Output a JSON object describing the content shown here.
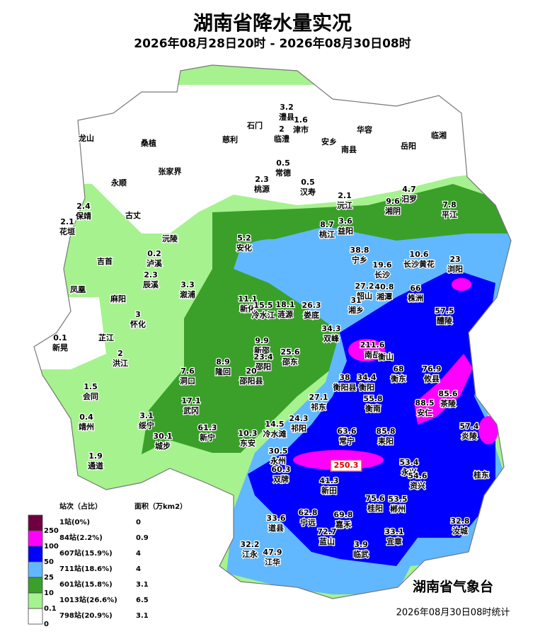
{
  "title": "湖南省降水量实况",
  "subtitle": "2026年08月28日20时 - 2026年08月30日08时",
  "organization": "湖南省气象台",
  "footer": "2026年08月30日08时统计",
  "legend": {
    "header_count": "站次（占比）",
    "header_area": "面积（万km2）",
    "levels": [
      {
        "threshold": 250,
        "stations": "1站(0%)",
        "area": 0,
        "color": "#6e0040"
      },
      {
        "threshold": 100,
        "stations": "84站(2.2%)",
        "area": 0.9,
        "color": "#ff00ff"
      },
      {
        "threshold": 50,
        "stations": "607站(15.9%)",
        "area": 4,
        "color": "#0000ff"
      },
      {
        "threshold": 25,
        "stations": "711站(18.6%)",
        "area": 4,
        "color": "#61b8ff"
      },
      {
        "threshold": 10,
        "stations": "601站(15.8%)",
        "area": 3.1,
        "color": "#3aa02a"
      },
      {
        "threshold": 0.1,
        "stations": "1013站(26.6%)",
        "area": 6.5,
        "color": "#a6f28f"
      },
      {
        "threshold": 0,
        "stations": "798站(20.9%)",
        "area": 3.1,
        "color": "#ffffff"
      }
    ]
  },
  "stations": [
    {
      "name": "澧县",
      "value": 3.2
    },
    {
      "name": "津市",
      "value": 1.6
    },
    {
      "name": "临澧",
      "value": 2
    },
    {
      "name": "石门",
      "value": null
    },
    {
      "name": "慈利",
      "value": null
    },
    {
      "name": "桑植",
      "value": null
    },
    {
      "name": "龙山",
      "value": null
    },
    {
      "name": "安乡",
      "value": null
    },
    {
      "name": "华容",
      "value": null
    },
    {
      "name": "南县",
      "value": null
    },
    {
      "name": "岳阳",
      "value": null
    },
    {
      "name": "临湘",
      "value": null
    },
    {
      "name": "常德",
      "value": 0.5
    },
    {
      "name": "张家界",
      "value": null
    },
    {
      "name": "永顺",
      "value": null
    },
    {
      "name": "桃源",
      "value": 2.3
    },
    {
      "name": "汉寿",
      "value": 0.5
    },
    {
      "name": "保靖",
      "value": 2.4
    },
    {
      "name": "古丈",
      "value": null
    },
    {
      "name": "花垣",
      "value": 2.1
    },
    {
      "name": "沅江",
      "value": 2.1
    },
    {
      "name": "湘阴",
      "value": 9.6
    },
    {
      "name": "汨罗",
      "value": 4.7
    },
    {
      "name": "平江",
      "value": 7.8
    },
    {
      "name": "桃江",
      "value": 8.7
    },
    {
      "name": "益阳",
      "value": 3.6
    },
    {
      "name": "沅陵",
      "value": null
    },
    {
      "name": "安化",
      "value": 5.2
    },
    {
      "name": "泸溪",
      "value": 0.2
    },
    {
      "name": "吉首",
      "value": null
    },
    {
      "name": "辰溪",
      "value": 2.3
    },
    {
      "name": "宁乡",
      "value": 38.8
    },
    {
      "name": "长沙",
      "value": 19.6
    },
    {
      "name": "长沙黄花",
      "value": 10.6
    },
    {
      "name": "浏阳",
      "value": 23
    },
    {
      "name": "溆浦",
      "value": 3.3
    },
    {
      "name": "凤凰",
      "value": null
    },
    {
      "name": "麻阳",
      "value": null
    },
    {
      "name": "新化",
      "value": 11.1
    },
    {
      "name": "冷水江",
      "value": 15.5
    },
    {
      "name": "涟源",
      "value": 18.1
    },
    {
      "name": "娄底",
      "value": 26.3
    },
    {
      "name": "韶山",
      "value": 27.2
    },
    {
      "name": "湘潭",
      "value": 40.8
    },
    {
      "name": "株洲",
      "value": 66
    },
    {
      "name": "湘乡",
      "value": 31
    },
    {
      "name": "醴陵",
      "value": 57.5
    },
    {
      "name": "怀化",
      "value": 3
    },
    {
      "name": "双峰",
      "value": 34.3
    },
    {
      "name": "芷江",
      "value": null
    },
    {
      "name": "新晃",
      "value": 0.1
    },
    {
      "name": "新邵",
      "value": 9.9
    },
    {
      "name": "邵东",
      "value": 25.6
    },
    {
      "name": "邵阳",
      "value": 23.4
    },
    {
      "name": "南岳",
      "value": 211.6
    },
    {
      "name": "衡山",
      "value": null
    },
    {
      "name": "洪江",
      "value": 2
    },
    {
      "name": "隆回",
      "value": 8.9
    },
    {
      "name": "邵阳县",
      "value": 20
    },
    {
      "name": "洞口",
      "value": 7.6
    },
    {
      "name": "衡东",
      "value": 68
    },
    {
      "name": "攸县",
      "value": 76.9
    },
    {
      "name": "衡阳县",
      "value": 38
    },
    {
      "name": "衡阳",
      "value": 34.4
    },
    {
      "name": "会同",
      "value": 1.5
    },
    {
      "name": "祁东",
      "value": 27.1
    },
    {
      "name": "衡南",
      "value": 55.8
    },
    {
      "name": "安仁",
      "value": 88.5
    },
    {
      "name": "茶陵",
      "value": 85.6
    },
    {
      "name": "武冈",
      "value": 17.1
    },
    {
      "name": "绥宁",
      "value": 3.1
    },
    {
      "name": "靖州",
      "value": 0.4
    },
    {
      "name": "冷水滩",
      "value": 14.5
    },
    {
      "name": "祁阳",
      "value": 24.3
    },
    {
      "name": "常宁",
      "value": 63.6
    },
    {
      "name": "耒阳",
      "value": 85.8
    },
    {
      "name": "炎陵",
      "value": 57.4
    },
    {
      "name": "城步",
      "value": 30.1
    },
    {
      "name": "新宁",
      "value": 61.3
    },
    {
      "name": "东安",
      "value": 10.3
    },
    {
      "name": "永州",
      "value": 30.5
    },
    {
      "name": null,
      "value": 250.3
    },
    {
      "name": "双牌",
      "value": 60.3
    },
    {
      "name": "永兴",
      "value": 53.4
    },
    {
      "name": "资兴",
      "value": 54.6
    },
    {
      "name": "桂东",
      "value": null
    },
    {
      "name": "通道",
      "value": 1.9
    },
    {
      "name": "新田",
      "value": 41.3
    },
    {
      "name": "桂阳",
      "value": 75.6
    },
    {
      "name": "郴州",
      "value": 53.5
    },
    {
      "name": "道县",
      "value": 33.6
    },
    {
      "name": "宁远",
      "value": 62.8
    },
    {
      "name": "嘉禾",
      "value": 69.8
    },
    {
      "name": "蓝山",
      "value": 72.7
    },
    {
      "name": "宜章",
      "value": 33.1
    },
    {
      "name": "汝城",
      "value": 32.8
    },
    {
      "name": "临武",
      "value": 3.9
    },
    {
      "name": "江永",
      "value": 32.2
    },
    {
      "name": "江华",
      "value": 47.9
    }
  ]
}
